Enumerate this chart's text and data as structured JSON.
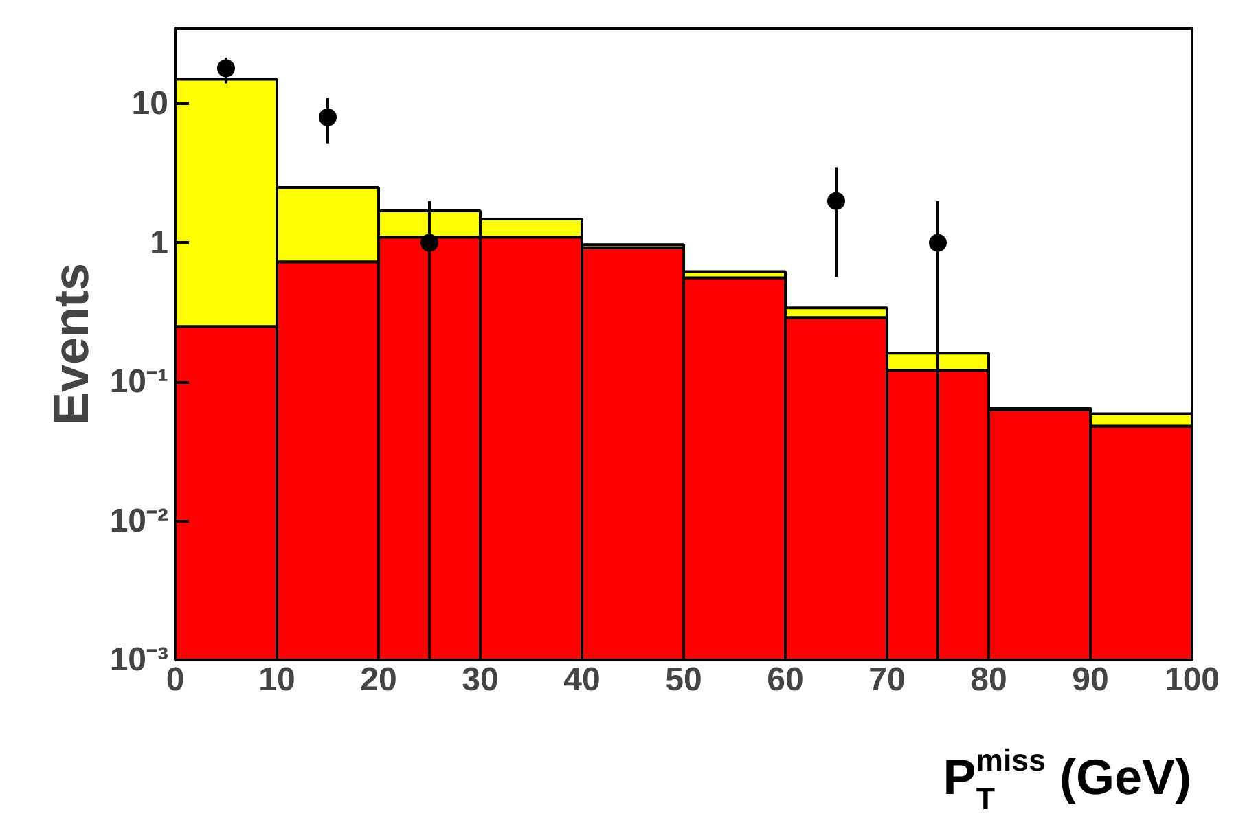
{
  "chart_data": {
    "type": "bar",
    "ylabel": "Events",
    "xlabel": "P$_{T}$$^{miss}$ (GeV)",
    "x": [
      5,
      15,
      25,
      35,
      45,
      55,
      65,
      75,
      85,
      95
    ],
    "stacked": true,
    "log": "y",
    "grid": false,
    "series": [
      {
        "color": "#ff0000",
        "values": [
          0.25,
          0.73,
          1.1,
          1.1,
          0.92,
          0.56,
          0.29,
          0.12,
          0.062,
          0.047
        ]
      },
      {
        "color": "#ffff00",
        "values": [
          14.75,
          1.77,
          0.6,
          0.38,
          0.05,
          0.06,
          0.05,
          0.04,
          0.002,
          0.011
        ]
      },
      {
        "type": "scatter",
        "color": "#000000",
        "x": [
          5,
          15,
          25,
          65,
          75
        ],
        "values": [
          18,
          8,
          1,
          2,
          1
        ],
        "errors": [
          [
            14,
            21.5
          ],
          [
            5.2,
            11
          ],
          [
            0.001,
            2
          ],
          [
            0.57,
            3.5
          ],
          [
            0.001,
            2
          ]
        ]
      }
    ],
    "marker": "circle",
    "xlim": [
      0,
      100
    ],
    "xticks": [
      0,
      10,
      20,
      30,
      40,
      50,
      60,
      70,
      80,
      90,
      100
    ],
    "ylim": [
      0.001,
      35
    ],
    "yticks": [
      {
        "value": 0.001,
        "label": "10⁻³"
      },
      {
        "value": 0.01,
        "label": "10⁻²"
      },
      {
        "value": 0.1,
        "label": "10⁻¹"
      },
      1,
      10
    ]
  }
}
